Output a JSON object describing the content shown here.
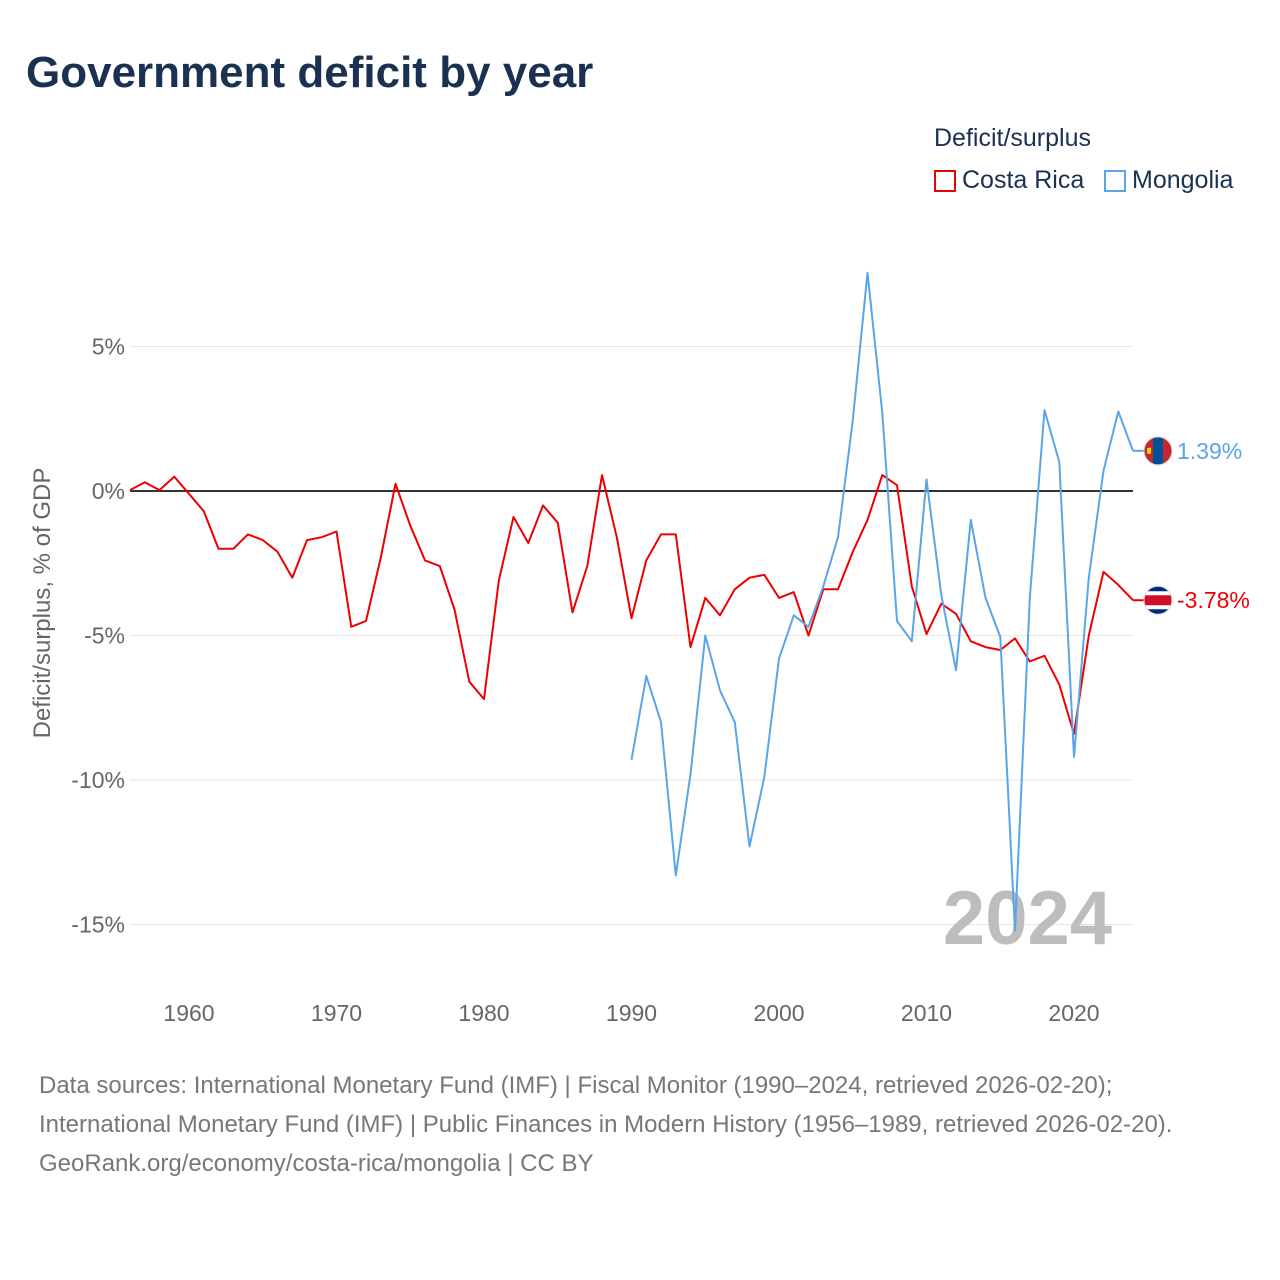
{
  "title": "Government deficit by year",
  "legend": {
    "title": "Deficit/surplus",
    "entries": [
      {
        "name": "Costa Rica",
        "color": "#ee0000"
      },
      {
        "name": "Mongolia",
        "color": "#5aa5e8"
      }
    ]
  },
  "watermark_year": "2024",
  "chart_data": {
    "type": "line",
    "title": "Government deficit by year",
    "xlabel": "",
    "ylabel": "Deficit/surplus, % of GDP",
    "xlim": [
      1956,
      2024
    ],
    "ylim": [
      -16.5,
      7.7
    ],
    "x_ticks": [
      "1960",
      "1970",
      "1980",
      "1990",
      "2000",
      "2010",
      "2020"
    ],
    "y_ticks": [
      {
        "value": 5,
        "label": "5%"
      },
      {
        "value": 0,
        "label": "0%"
      },
      {
        "value": -5,
        "label": "-5%"
      },
      {
        "value": -10,
        "label": "-10%"
      },
      {
        "value": -15,
        "label": "-15%"
      }
    ],
    "grid": true,
    "legend_position": "top-right",
    "series": [
      {
        "name": "Costa Rica",
        "color": "#ee0000",
        "end_label": "-3.78%",
        "start_year": 1956,
        "values": [
          0.03,
          0.3,
          0.03,
          0.5,
          -0.1,
          -0.7,
          -2.0,
          -2.0,
          -1.5,
          -1.7,
          -2.1,
          -3.0,
          -1.7,
          -1.6,
          -1.4,
          -4.7,
          -4.5,
          -2.3,
          0.25,
          -1.2,
          -2.4,
          -2.6,
          -4.1,
          -6.6,
          -7.2,
          -3.1,
          -0.9,
          -1.8,
          -0.5,
          -1.1,
          -4.2,
          -2.6,
          0.55,
          -1.6,
          -4.4,
          -2.4,
          -1.5,
          -1.5,
          -5.4,
          -3.7,
          -4.3,
          -3.4,
          -3.0,
          -2.9,
          -3.7,
          -3.5,
          -5.0,
          -3.4,
          -3.4,
          -2.1,
          -1.0,
          0.55,
          0.2,
          -3.3,
          -4.95,
          -3.9,
          -4.25,
          -5.2,
          -5.4,
          -5.5,
          -5.1,
          -5.9,
          -5.7,
          -6.7,
          -8.4,
          -5.0,
          -2.8,
          -3.25,
          -3.78
        ]
      },
      {
        "name": "Mongolia",
        "color": "#5aa5e8",
        "end_label": "1.39%",
        "start_year": 1990,
        "values": [
          -9.3,
          -6.4,
          -8.0,
          -13.3,
          -9.8,
          -5.0,
          -6.9,
          -8.0,
          -12.3,
          -9.9,
          -5.8,
          -4.3,
          -4.7,
          -3.3,
          -1.6,
          2.45,
          7.55,
          2.7,
          -4.5,
          -5.2,
          0.4,
          -3.6,
          -6.2,
          -1.0,
          -3.7,
          -5.05,
          -15.2,
          -3.7,
          2.8,
          1.0,
          -9.2,
          -3.0,
          0.7,
          2.75,
          1.39
        ]
      }
    ]
  },
  "footer": {
    "sources": "Data sources: International Monetary Fund (IMF) | Fiscal Monitor (1990–2024, retrieved 2026-02-20); International Monetary Fund (IMF) | Public Finances in Modern History (1956–1989, retrieved 2026-02-20).",
    "credit": "GeoRank.org/economy/costa-rica/mongolia | CC BY"
  }
}
